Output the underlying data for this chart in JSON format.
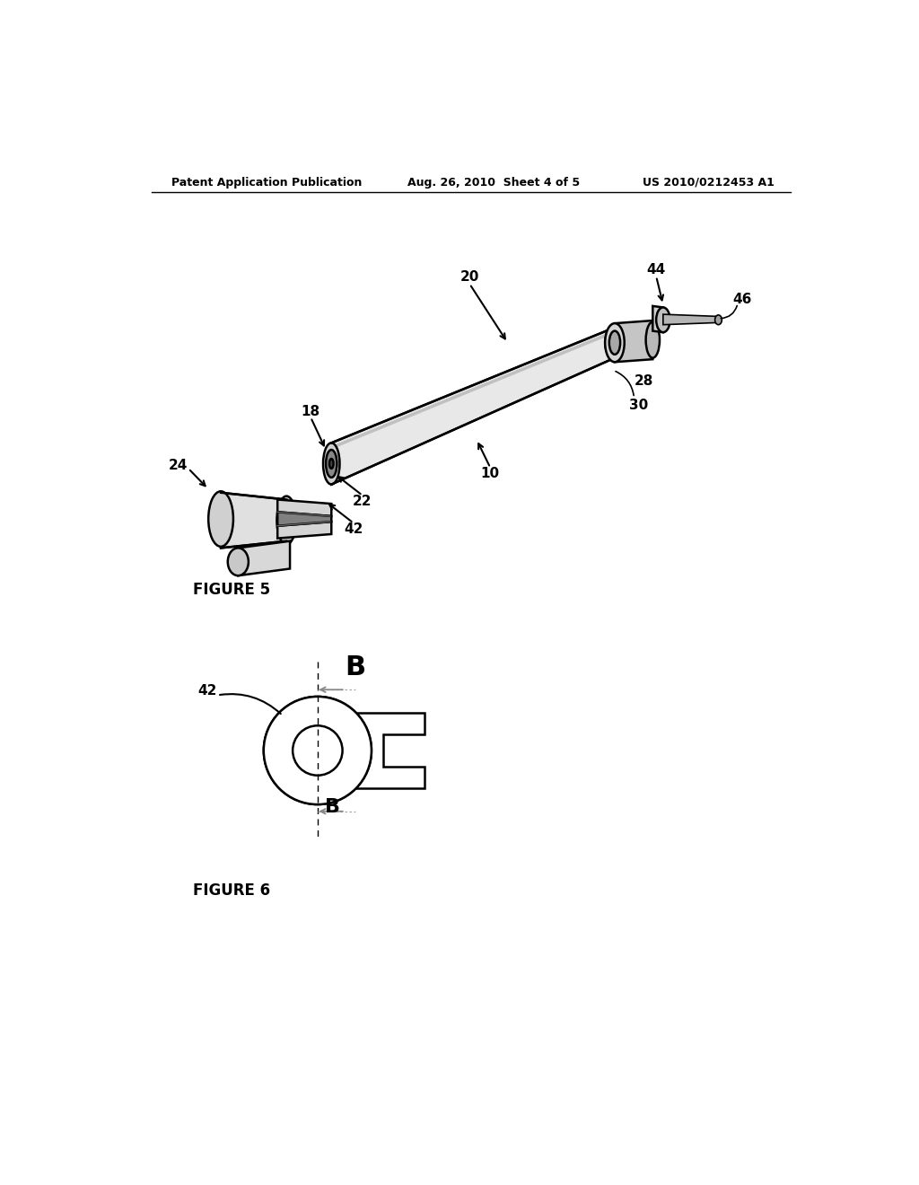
{
  "bg_color": "#ffffff",
  "header_left": "Patent Application Publication",
  "header_center": "Aug. 26, 2010  Sheet 4 of 5",
  "header_right": "US 2010/0212453 A1",
  "fig5_label": "FIGURE 5",
  "fig6_label": "FIGURE 6",
  "line_color": "#000000",
  "gray_color": "#888888",
  "light_gray": "#cccccc",
  "lw_main": 1.8,
  "lw_thin": 1.2
}
